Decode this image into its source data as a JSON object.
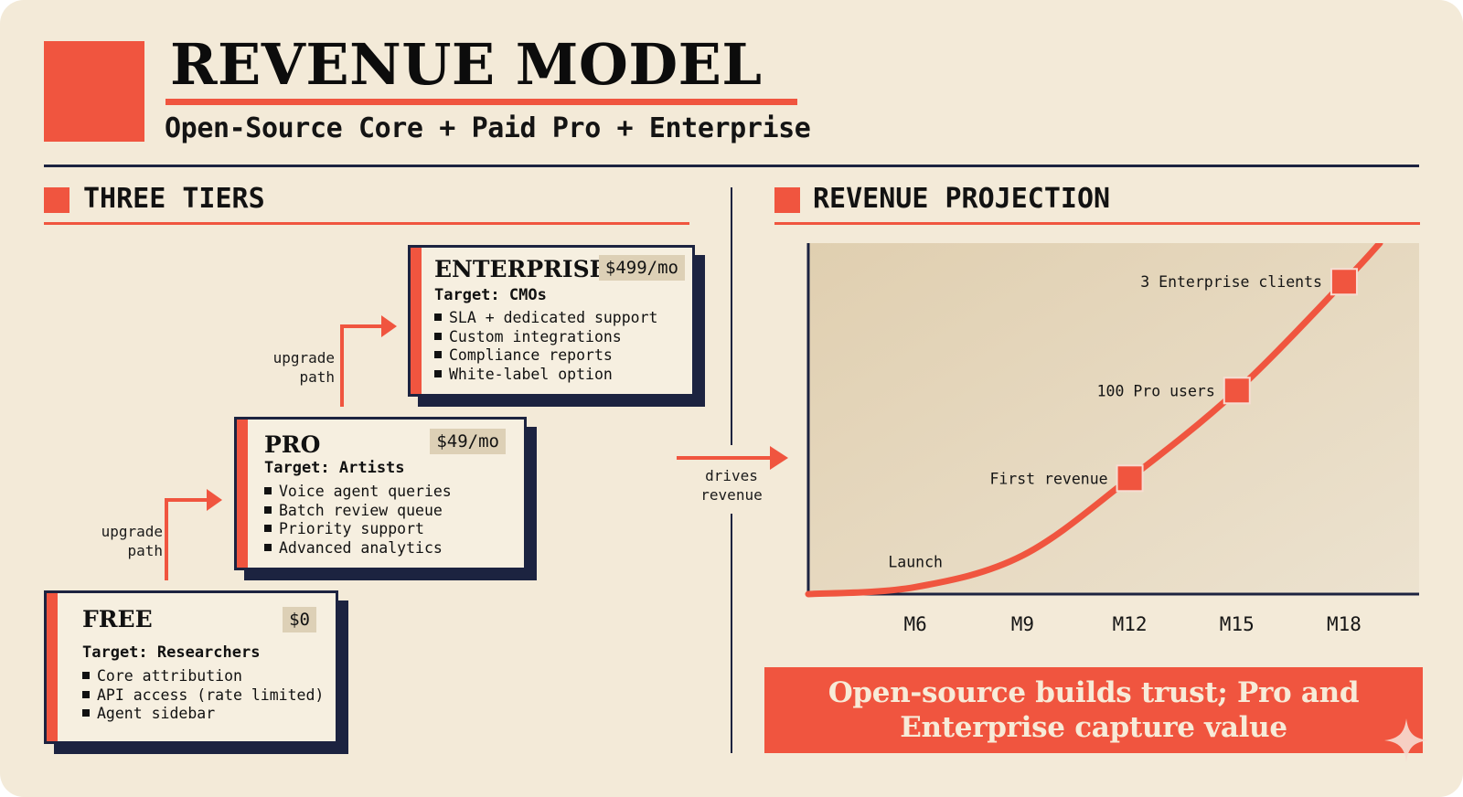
{
  "header": {
    "title": "REVENUE MODEL",
    "subtitle": "Open-Source Core + Paid Pro + Enterprise"
  },
  "tiers_section": {
    "title": "THREE TIERS",
    "upgrade_label_lower": [
      "upgrade",
      "path"
    ],
    "upgrade_label_upper": [
      "upgrade",
      "path"
    ],
    "tiers": [
      {
        "name": "FREE",
        "price": "$0",
        "target": "Target: Researchers",
        "features": [
          "Core attribution",
          "API access (rate limited)",
          "Agent sidebar"
        ]
      },
      {
        "name": "PRO",
        "price": "$49/mo",
        "target": "Target: Artists",
        "features": [
          "Voice agent queries",
          "Batch review queue",
          "Priority support",
          "Advanced analytics"
        ]
      },
      {
        "name": "ENTERPRISE",
        "price": "$499/mo",
        "target": "Target: CMOs",
        "features": [
          "SLA + dedicated support",
          "Custom integrations",
          "Compliance reports",
          "White-label option"
        ]
      }
    ]
  },
  "connector": {
    "label": [
      "drives",
      "revenue"
    ]
  },
  "projection_section": {
    "title": "REVENUE PROJECTION",
    "takeaway": [
      "Open-source builds trust; Pro and",
      "Enterprise capture value"
    ]
  },
  "chart_data": {
    "type": "line",
    "title": "REVENUE PROJECTION",
    "x_ticks": [
      "M6",
      "M9",
      "M12",
      "M15",
      "M18"
    ],
    "y_axis_labels": "none",
    "series": [
      {
        "points": [
          {
            "x": 3.0,
            "y": 0
          },
          {
            "x": 6.0,
            "y": 2
          },
          {
            "x": 9.0,
            "y": 11
          },
          {
            "x": 12.0,
            "y": 33
          },
          {
            "x": 15.0,
            "y": 58
          },
          {
            "x": 18.0,
            "y": 89
          },
          {
            "x": 19.0,
            "y": 100
          }
        ]
      }
    ],
    "milestones": [
      {
        "label": "Launch",
        "x": 6.0,
        "y": 2,
        "marker": false
      },
      {
        "label": "First revenue",
        "x": 12.0,
        "y": 33,
        "marker": true
      },
      {
        "label": "100 Pro users",
        "x": 15.0,
        "y": 58,
        "marker": true
      },
      {
        "label": "3 Enterprise clients",
        "x": 18.0,
        "y": 89,
        "marker": true
      }
    ],
    "xlim": [
      3.0,
      20.1
    ],
    "ylim": [
      0,
      100
    ],
    "grid": false,
    "legend": "none",
    "colors": {
      "line": "#f0553f",
      "marker": "#f0553f",
      "plot_bg": "#e3d4b9",
      "axis": "#1c2340"
    }
  },
  "colors": {
    "accent": "#f0553f",
    "navy": "#1c2340",
    "background": "#f3ead8",
    "takeaway_text": "#f7ebd8"
  }
}
